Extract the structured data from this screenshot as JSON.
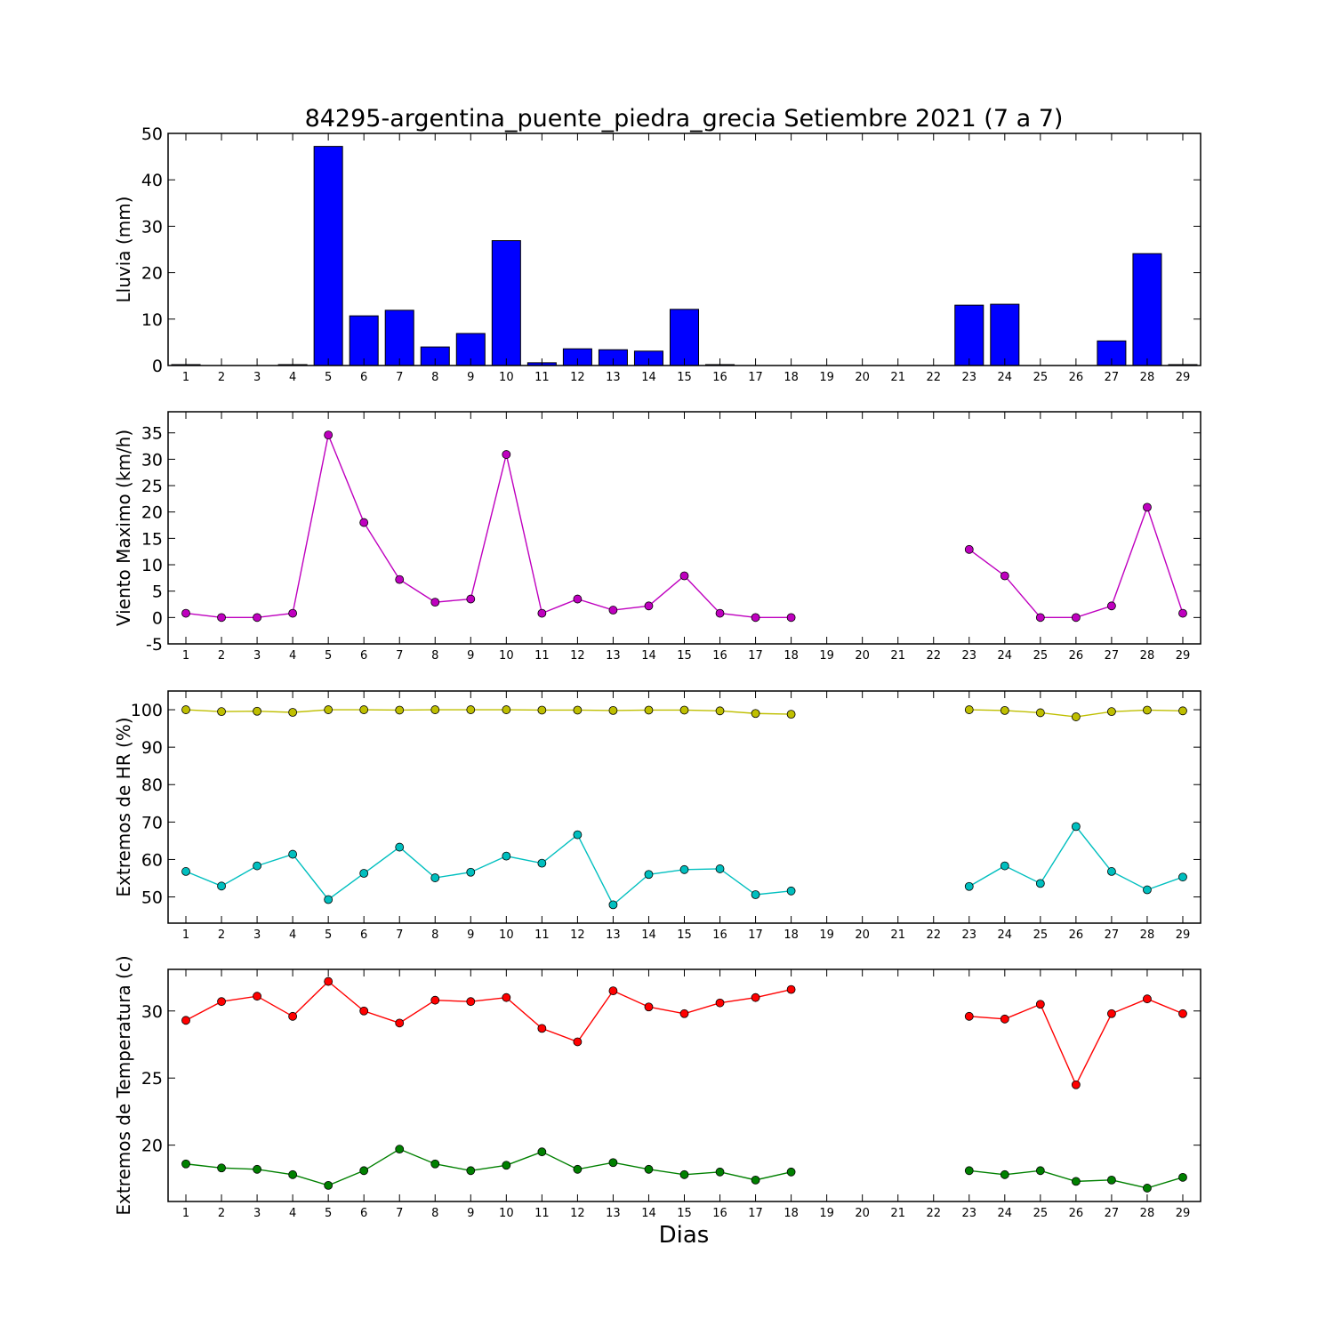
{
  "title": "84295-argentina_puente_piedra_grecia Setiembre 2021  (7 a 7)",
  "xlabel": "Dias",
  "days": [
    1,
    2,
    3,
    4,
    5,
    6,
    7,
    8,
    9,
    10,
    11,
    12,
    13,
    14,
    15,
    16,
    17,
    18,
    19,
    20,
    21,
    22,
    23,
    24,
    25,
    26,
    27,
    28,
    29
  ],
  "colors": {
    "rain": "#0000ff",
    "wind": "#bf00bf",
    "hr_max": "#bfbf00",
    "hr_min": "#00bfbf",
    "temp_max": "#ff0000",
    "temp_min": "#008000"
  },
  "chart_data": [
    {
      "type": "bar",
      "ylabel": "Lluvia (mm)",
      "ylim": [
        0,
        50
      ],
      "yticks": [
        0,
        10,
        20,
        30,
        40,
        50
      ],
      "categories": [
        1,
        2,
        3,
        4,
        5,
        6,
        7,
        8,
        9,
        10,
        11,
        12,
        13,
        14,
        15,
        16,
        17,
        18,
        19,
        20,
        21,
        22,
        23,
        24,
        25,
        26,
        27,
        28,
        29
      ],
      "series": [
        {
          "values": [
            0.2,
            0,
            0,
            0.2,
            47.2,
            10.7,
            11.9,
            4.0,
            6.9,
            26.9,
            0.6,
            3.6,
            3.4,
            3.1,
            12.1,
            0.2,
            0,
            0,
            0,
            0,
            0,
            0,
            13.0,
            13.2,
            0,
            0,
            5.3,
            24.1,
            0.2
          ],
          "color": "#0000ff"
        }
      ]
    },
    {
      "type": "line",
      "ylabel": "Viento Maximo (km/h)",
      "ylim": [
        -5,
        39
      ],
      "yticks": [
        -5,
        0,
        5,
        10,
        15,
        20,
        25,
        30,
        35
      ],
      "x": [
        1,
        2,
        3,
        4,
        5,
        6,
        7,
        8,
        9,
        10,
        11,
        12,
        13,
        14,
        15,
        16,
        17,
        18,
        19,
        20,
        21,
        22,
        23,
        24,
        25,
        26,
        27,
        28,
        29
      ],
      "series": [
        {
          "values": [
            0.8,
            0,
            0,
            0.8,
            34.6,
            18.0,
            7.2,
            2.9,
            3.5,
            30.9,
            0.8,
            3.5,
            1.4,
            2.2,
            7.9,
            0.8,
            0,
            0,
            null,
            null,
            null,
            null,
            12.9,
            7.9,
            0,
            0,
            2.2,
            20.9,
            0.8
          ],
          "color": "#bf00bf"
        }
      ]
    },
    {
      "type": "line",
      "ylabel": "Extremos de HR (%)",
      "ylim": [
        43,
        105
      ],
      "yticks": [
        50,
        60,
        70,
        80,
        90,
        100
      ],
      "x": [
        1,
        2,
        3,
        4,
        5,
        6,
        7,
        8,
        9,
        10,
        11,
        12,
        13,
        14,
        15,
        16,
        17,
        18,
        19,
        20,
        21,
        22,
        23,
        24,
        25,
        26,
        27,
        28,
        29
      ],
      "series": [
        {
          "values": [
            100,
            99.5,
            99.6,
            99.3,
            100,
            100,
            99.9,
            100,
            100,
            100,
            99.9,
            99.9,
            99.8,
            99.9,
            99.9,
            99.7,
            99.0,
            98.8,
            null,
            null,
            null,
            null,
            100,
            99.8,
            99.2,
            98.1,
            99.5,
            99.9,
            99.7
          ],
          "color": "#bfbf00"
        },
        {
          "values": [
            56.8,
            52.9,
            58.3,
            61.4,
            49.3,
            56.3,
            63.3,
            55.1,
            56.6,
            60.9,
            59.0,
            66.6,
            47.9,
            56.0,
            57.3,
            57.5,
            50.6,
            51.6,
            null,
            null,
            null,
            null,
            52.8,
            58.3,
            53.6,
            68.8,
            56.8,
            51.9,
            55.3
          ],
          "color": "#00bfbf"
        }
      ]
    },
    {
      "type": "line",
      "ylabel": "Extremos de Temperatura (c)",
      "ylim": [
        15.8,
        33.1
      ],
      "yticks": [
        20,
        25,
        30
      ],
      "x": [
        1,
        2,
        3,
        4,
        5,
        6,
        7,
        8,
        9,
        10,
        11,
        12,
        13,
        14,
        15,
        16,
        17,
        18,
        19,
        20,
        21,
        22,
        23,
        24,
        25,
        26,
        27,
        28,
        29
      ],
      "series": [
        {
          "values": [
            29.3,
            30.7,
            31.1,
            29.6,
            32.2,
            30.0,
            29.1,
            30.8,
            30.7,
            31.0,
            28.7,
            27.7,
            31.5,
            30.3,
            29.8,
            30.6,
            31.0,
            31.6,
            null,
            null,
            null,
            null,
            29.6,
            29.4,
            30.5,
            24.5,
            29.8,
            30.9,
            29.8
          ],
          "color": "#ff0000"
        },
        {
          "values": [
            18.6,
            18.3,
            18.2,
            17.8,
            17.0,
            18.1,
            19.7,
            18.6,
            18.1,
            18.5,
            19.5,
            18.2,
            18.7,
            18.2,
            17.8,
            18.0,
            17.4,
            18.0,
            null,
            null,
            null,
            null,
            18.1,
            17.8,
            18.1,
            17.3,
            17.4,
            16.8,
            17.6
          ],
          "color": "#008000"
        }
      ]
    }
  ]
}
